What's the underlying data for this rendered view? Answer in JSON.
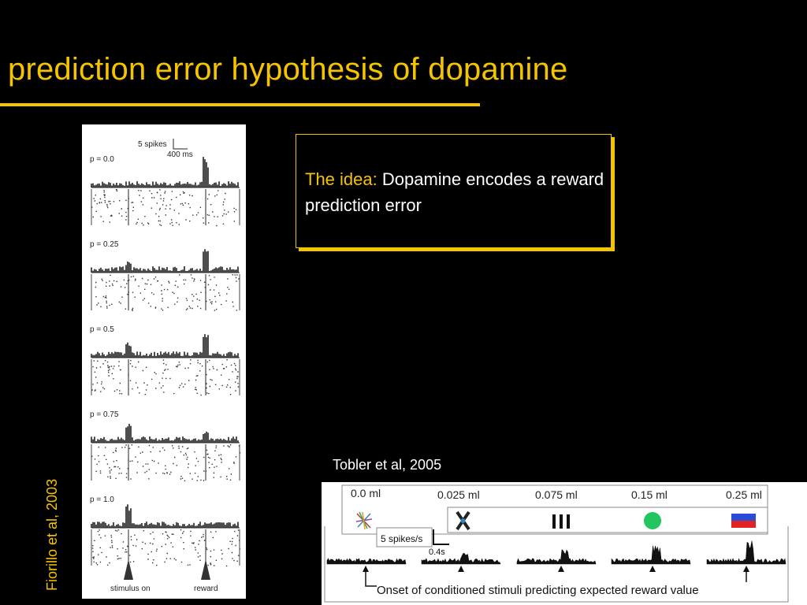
{
  "slide": {
    "title": "prediction error hypothesis of dopamine"
  },
  "idea_box": {
    "label": "The idea:",
    "text": "Dopamine encodes a reward prediction error"
  },
  "left_figure": {
    "scale_bar_spikes": "5 spikes",
    "scale_bar_time": "400 ms",
    "panels": [
      {
        "label": "p = 0.0"
      },
      {
        "label": "p = 0.25"
      },
      {
        "label": "p = 0.5"
      },
      {
        "label": "p = 0.75"
      },
      {
        "label": "p = 1.0"
      }
    ],
    "marker_stimulus": "stimulus on",
    "marker_reward": "reward",
    "citation": "Fiorillo et al, 2003"
  },
  "right_figure": {
    "citation": "Tobler et al, 2005",
    "volumes": [
      "0.0 ml",
      "0.025 ml",
      "0.075 ml",
      "0.15 ml",
      "0.25 ml"
    ],
    "scale_bar_rate": "5 spikes/s",
    "scale_bar_time": "0.4s",
    "caption": "Onset of conditioned stimuli predicting expected reward value"
  }
}
